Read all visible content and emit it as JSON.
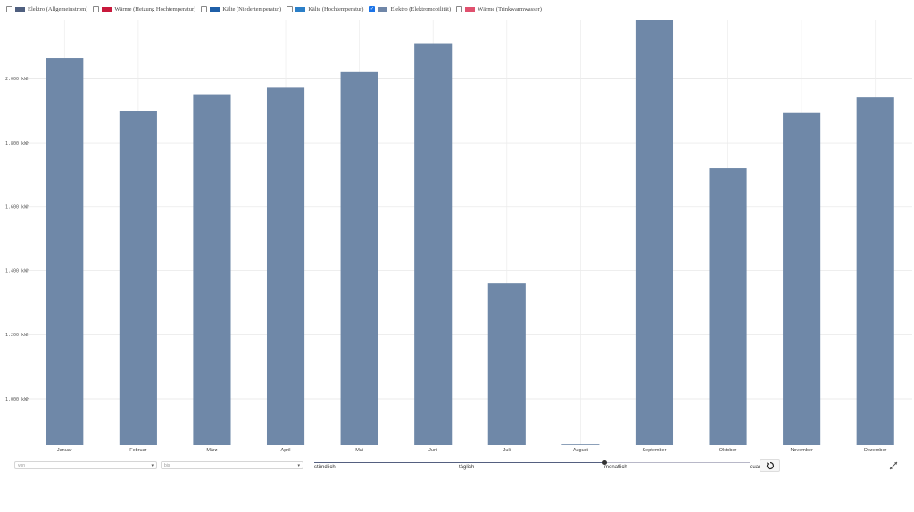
{
  "legend": [
    {
      "label": "Elektro (Allgemeinstrom)",
      "color": "#4f5f7f",
      "checked": false
    },
    {
      "label": "Wärme (Heizung Hochtemperatur)",
      "color": "#c8193c",
      "checked": false
    },
    {
      "label": "Kälte (Niedertemperatur)",
      "color": "#1f5fa8",
      "checked": false
    },
    {
      "label": "Kälte (Hochtemperatur)",
      "color": "#2b7fc8",
      "checked": false
    },
    {
      "label": "Elektro (Elektromobilität)",
      "color": "#6f86a8",
      "checked": true
    },
    {
      "label": "Wärme (Trinkwarmwasser)",
      "color": "#e0506e",
      "checked": false
    }
  ],
  "chart_data": {
    "type": "bar",
    "categories": [
      "Januar",
      "Februar",
      "März",
      "April",
      "Mai",
      "Juni",
      "Juli",
      "August",
      "September",
      "Oktober",
      "November",
      "Dezember"
    ],
    "series": [
      {
        "name": "Elektro (Elektromobilität)",
        "color": "#6f88a8",
        "values": [
          2065,
          1900,
          1952,
          1972,
          2021,
          2111,
          1362,
          855,
          2185,
          1722,
          1893,
          1942
        ]
      }
    ],
    "yticks": [
      1000,
      1200,
      1400,
      1600,
      1800,
      2000
    ],
    "ytick_labels": [
      "1.000 kWh",
      "1.200 kWh",
      "1.400 kWh",
      "1.600 kWh",
      "1.800 kWh",
      "2.000 kWh"
    ],
    "ylim": [
      855,
      2185
    ],
    "grid": true
  },
  "controls": {
    "from_placeholder": "von",
    "to_placeholder": "bis",
    "resolution_labels": [
      "stündlich",
      "täglich",
      "monatlich",
      "quar"
    ],
    "resolution_selected": "monatlich"
  }
}
